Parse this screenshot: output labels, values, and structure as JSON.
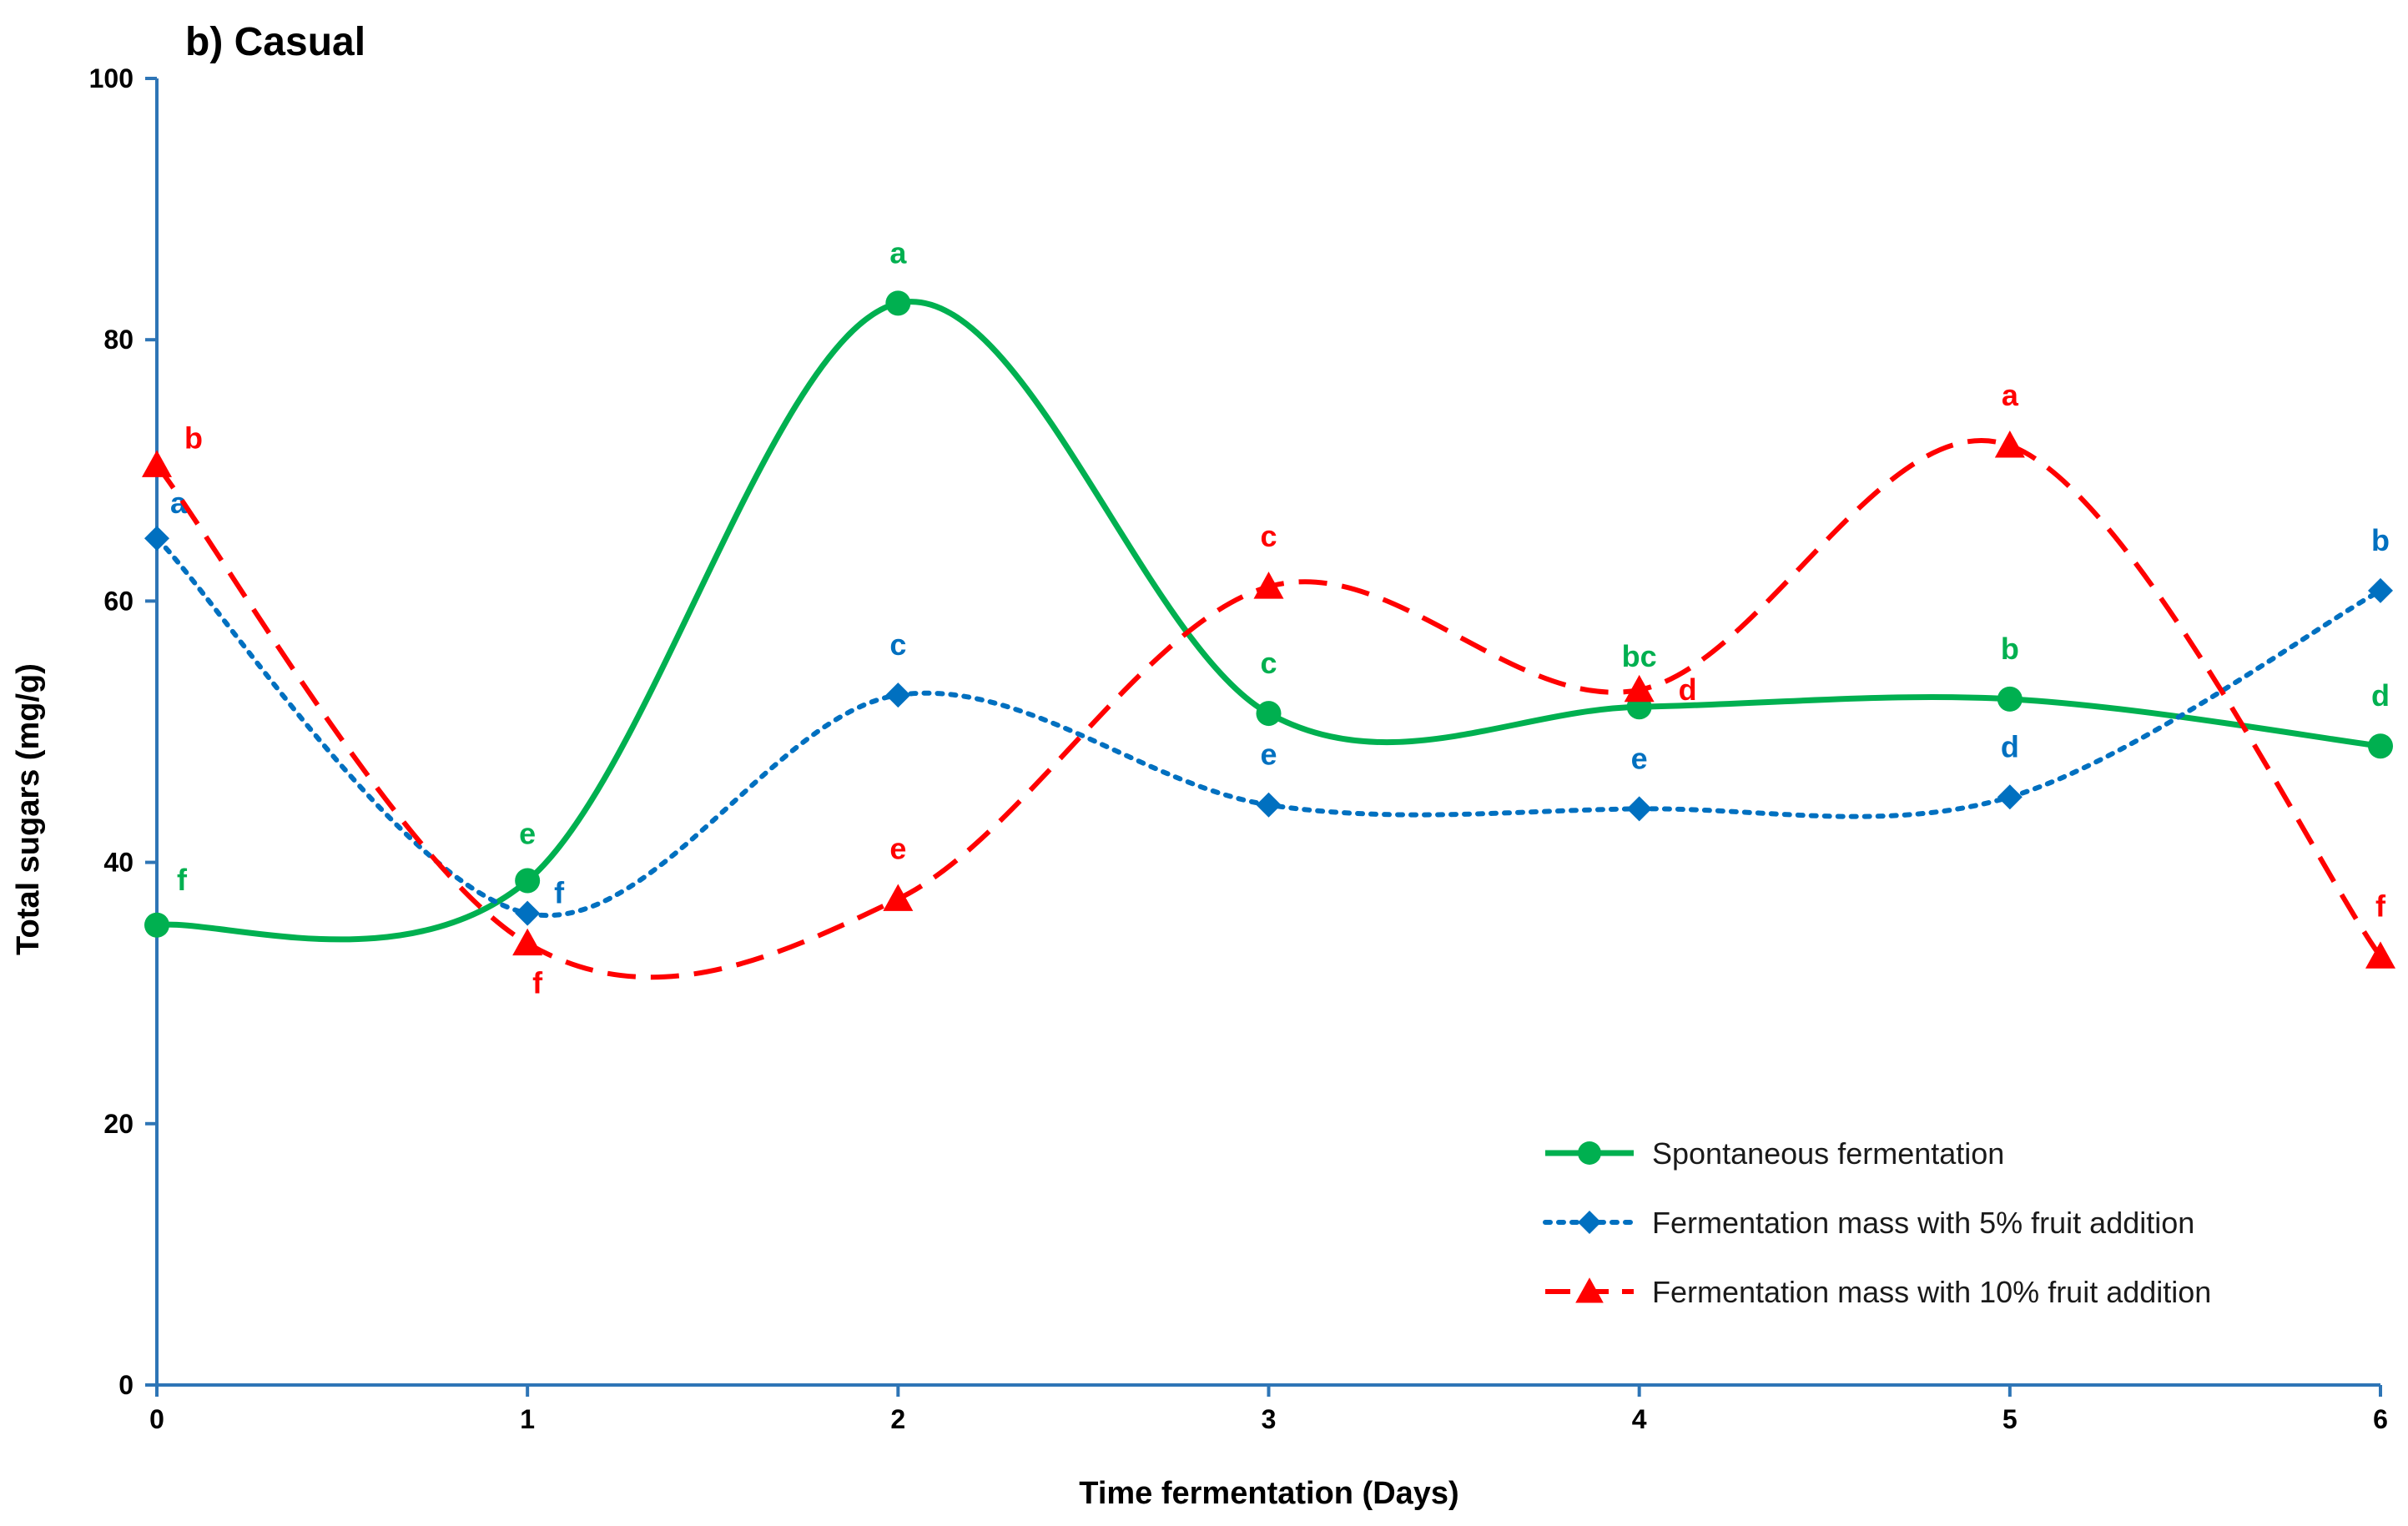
{
  "chart_data": {
    "type": "line",
    "title": "b) Casual",
    "xlabel": "Time fermentation (Days)",
    "ylabel": "Total sugars (mg/g)",
    "x": [
      0,
      1,
      2,
      3,
      4,
      5,
      6
    ],
    "xlim": [
      0,
      6
    ],
    "ylim": [
      0,
      100
    ],
    "yticks": [
      0,
      20,
      40,
      60,
      80,
      100
    ],
    "xticks": [
      0,
      1,
      2,
      3,
      4,
      5,
      6
    ],
    "grid": false,
    "legend_position": "bottom-right",
    "axis_color": "#2e75b6",
    "series": [
      {
        "name": "Spontaneous fermentation",
        "color": "#00b050",
        "dash": "solid",
        "marker": "circle",
        "values": [
          35.2,
          38.6,
          82.8,
          51.4,
          51.9,
          52.5,
          48.9
        ],
        "letters": [
          "f",
          "e",
          "a",
          "c",
          "bc",
          "b",
          "d"
        ]
      },
      {
        "name": "Fermentation mass with 5%  fruit addition",
        "color": "#0070c0",
        "dash": "dotted",
        "marker": "diamond",
        "values": [
          64.8,
          36.1,
          52.8,
          44.4,
          44.1,
          45.0,
          60.8
        ],
        "letters": [
          "a",
          "f",
          "c",
          "e",
          "e",
          "d",
          "b"
        ]
      },
      {
        "name": "Fermentation mass with 10%  fruit addition",
        "color": "#ff0000",
        "dash": "dashed",
        "marker": "triangle",
        "values": [
          70.4,
          33.8,
          37.2,
          61.1,
          53.2,
          71.9,
          32.8
        ],
        "letters": [
          "b",
          "f",
          "e",
          "c",
          "d",
          "a",
          "f"
        ]
      }
    ]
  }
}
